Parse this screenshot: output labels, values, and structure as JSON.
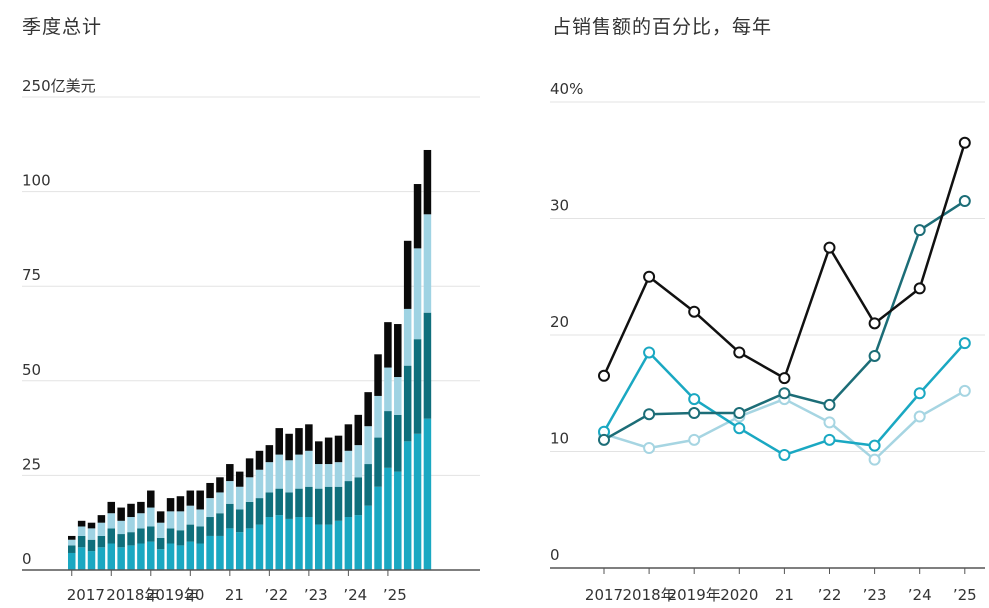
{
  "chart_data": [
    {
      "type": "bar",
      "stacked": true,
      "title": "季度总计",
      "y_ticks": [
        "0",
        "25",
        "50",
        "75",
        "100",
        "250亿美元"
      ],
      "ylim": [
        0,
        130
      ],
      "x_ticks": [
        {
          "label": "2017",
          "index": 0
        },
        {
          "label": "2018年",
          "index": 4
        },
        {
          "label": "2019年",
          "index": 8
        },
        {
          "label": "20",
          "index": 12
        },
        {
          "label": "21",
          "index": 16
        },
        {
          "label": "’22",
          "index": 20
        },
        {
          "label": "’23",
          "index": 24
        },
        {
          "label": "’24",
          "index": 28
        },
        {
          "label": "’25",
          "index": 32
        }
      ],
      "colors": [
        "#1aa8c2",
        "#0f6f7c",
        "#9fd3e3",
        "#0a0a0a"
      ],
      "series": [
        {
          "values": [
            4.5,
            6,
            5,
            6,
            7,
            6,
            6.5,
            7,
            7.5,
            5.5,
            7,
            6.5,
            7.5,
            7,
            9,
            9,
            11,
            10,
            11,
            12,
            14,
            14.5,
            13.5,
            14,
            14,
            12,
            12,
            13,
            14,
            14.5,
            17,
            22,
            27,
            26,
            34,
            36,
            40
          ]
        },
        {
          "values": [
            2,
            3,
            3,
            3,
            4,
            3.5,
            3.5,
            4,
            4,
            3,
            4,
            4,
            4.5,
            4.5,
            5,
            6,
            6.5,
            6,
            7,
            7,
            6.5,
            7,
            7,
            7.5,
            8,
            9.5,
            10,
            9,
            9.5,
            10,
            11,
            13,
            15,
            15,
            20,
            25,
            28
          ]
        },
        {
          "values": [
            1.5,
            2.5,
            3,
            3.5,
            4,
            3.5,
            4,
            4,
            5,
            4,
            4.5,
            5,
            5,
            4.5,
            5,
            5.5,
            6,
            6,
            6.5,
            7.5,
            8,
            9,
            8.5,
            9,
            9.5,
            6.5,
            6,
            6.5,
            8,
            8.5,
            10,
            11,
            11.5,
            10,
            15,
            24,
            26
          ]
        },
        {
          "values": [
            1,
            1.5,
            1.5,
            2,
            3,
            3.5,
            3.5,
            3,
            4.5,
            3,
            3.5,
            4,
            4,
            5,
            4,
            4,
            4.5,
            4,
            5,
            5,
            4.5,
            7,
            7,
            7,
            7,
            6,
            7,
            7,
            7,
            8,
            9,
            11,
            12,
            14,
            18,
            17,
            17
          ]
        }
      ]
    },
    {
      "type": "line",
      "title": "占销售额的百分比，每年",
      "y_ticks": [
        "0",
        "10",
        "20",
        "30",
        "40%"
      ],
      "ylim": [
        0,
        40
      ],
      "x": [
        "2017",
        "2018年",
        "2019年",
        "2020",
        "21",
        "’22",
        "’23",
        "’24",
        "’25"
      ],
      "series": [
        {
          "color": "#111111",
          "values": [
            16.5,
            25,
            22,
            18.5,
            16.3,
            27.5,
            21,
            24,
            36.5
          ]
        },
        {
          "color": "#1c6d77",
          "values": [
            11,
            13.2,
            13.3,
            13.3,
            15,
            14,
            18.2,
            29,
            31.5
          ]
        },
        {
          "color": "#1aa8c2",
          "values": [
            11.7,
            18.5,
            14.5,
            12,
            9.7,
            11,
            10.5,
            15,
            19.3
          ]
        },
        {
          "color": "#a6d5e2",
          "values": [
            11.5,
            10.3,
            11,
            13,
            14.5,
            12.5,
            9.3,
            13,
            15.2
          ]
        }
      ]
    }
  ]
}
